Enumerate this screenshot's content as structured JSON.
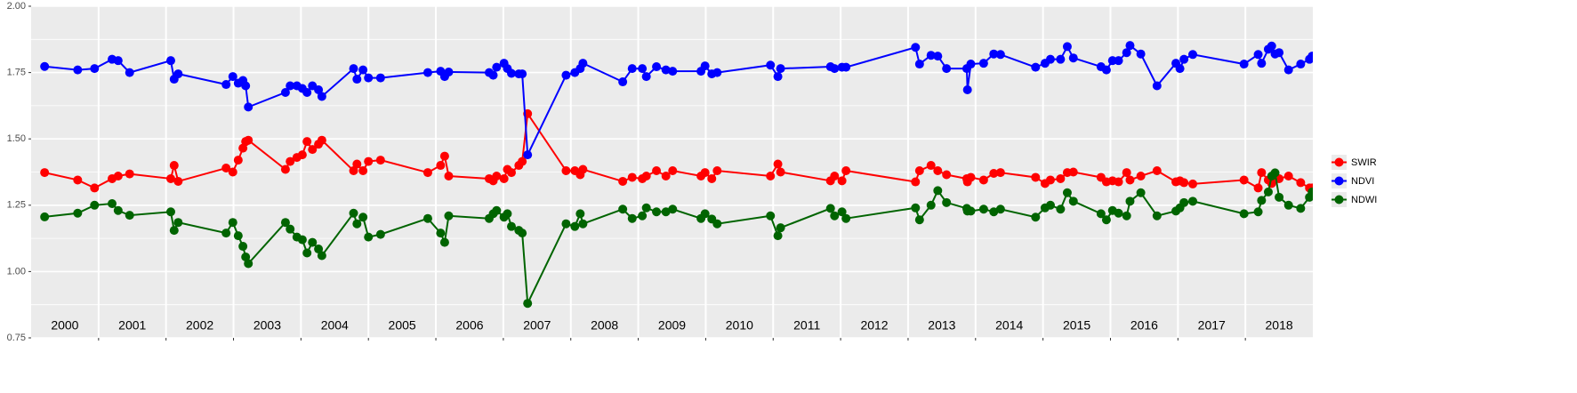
{
  "chart_data": {
    "type": "line",
    "x": [
      2000.2,
      2000.69,
      2000.94,
      2001.2,
      2001.29,
      2001.46,
      2002.07,
      2002.12,
      2002.18,
      2002.89,
      2002.99,
      2003.07,
      2003.14,
      2003.18,
      2003.22,
      2003.77,
      2003.84,
      2003.94,
      2004.02,
      2004.09,
      2004.17,
      2004.26,
      2004.31,
      2004.78,
      2004.83,
      2004.92,
      2005.0,
      2005.18,
      2005.88,
      2006.07,
      2006.13,
      2006.19,
      2006.79,
      2006.85,
      2006.9,
      2007.01,
      2007.06,
      2007.12,
      2007.23,
      2007.28,
      2007.36,
      2007.93,
      2008.06,
      2008.14,
      2008.18,
      2008.77,
      2008.91,
      2009.06,
      2009.12,
      2009.27,
      2009.41,
      2009.51,
      2009.93,
      2009.99,
      2010.09,
      2010.17,
      2010.96,
      2011.07,
      2011.11,
      2011.85,
      2011.91,
      2012.02,
      2012.08,
      2013.11,
      2013.17,
      2013.34,
      2013.44,
      2013.57,
      2013.87,
      2013.88,
      2013.93,
      2014.12,
      2014.27,
      2014.37,
      2014.89,
      2015.03,
      2015.11,
      2015.26,
      2015.36,
      2015.45,
      2015.86,
      2015.94,
      2016.03,
      2016.12,
      2016.24,
      2016.29,
      2016.45,
      2016.69,
      2016.97,
      2017.03,
      2017.09,
      2017.22,
      2017.98,
      2018.19,
      2018.24,
      2018.34,
      2018.39,
      2018.44,
      2018.5,
      2018.64,
      2018.82,
      2018.95,
      2018.99
    ],
    "series": [
      {
        "name": "SWIR",
        "color": "#ff0000",
        "values": [
          1.373,
          1.345,
          1.315,
          1.35,
          1.36,
          1.368,
          1.35,
          1.4,
          1.34,
          1.39,
          1.375,
          1.42,
          1.465,
          1.49,
          1.495,
          1.385,
          1.415,
          1.43,
          1.44,
          1.49,
          1.46,
          1.48,
          1.495,
          1.38,
          1.405,
          1.38,
          1.415,
          1.42,
          1.373,
          1.4,
          1.435,
          1.36,
          1.35,
          1.342,
          1.36,
          1.35,
          1.385,
          1.373,
          1.4,
          1.415,
          1.595,
          1.38,
          1.38,
          1.365,
          1.385,
          1.34,
          1.355,
          1.35,
          1.36,
          1.38,
          1.36,
          1.38,
          1.36,
          1.373,
          1.35,
          1.38,
          1.36,
          1.405,
          1.375,
          1.342,
          1.36,
          1.342,
          1.38,
          1.338,
          1.38,
          1.4,
          1.38,
          1.365,
          1.35,
          1.338,
          1.355,
          1.345,
          1.37,
          1.373,
          1.355,
          1.332,
          1.345,
          1.35,
          1.373,
          1.375,
          1.355,
          1.338,
          1.342,
          1.338,
          1.373,
          1.345,
          1.36,
          1.38,
          1.338,
          1.342,
          1.335,
          1.33,
          1.345,
          1.315,
          1.373,
          1.345,
          1.332,
          1.36,
          1.35,
          1.36,
          1.335,
          1.315,
          1.315
        ]
      },
      {
        "name": "NDVI",
        "color": "#0000ff",
        "values": [
          1.773,
          1.76,
          1.765,
          1.8,
          1.795,
          1.75,
          1.795,
          1.725,
          1.745,
          1.705,
          1.735,
          1.71,
          1.72,
          1.7,
          1.62,
          1.675,
          1.7,
          1.7,
          1.69,
          1.675,
          1.7,
          1.685,
          1.66,
          1.765,
          1.725,
          1.76,
          1.73,
          1.73,
          1.75,
          1.755,
          1.735,
          1.752,
          1.75,
          1.74,
          1.77,
          1.785,
          1.765,
          1.747,
          1.745,
          1.745,
          1.44,
          1.74,
          1.75,
          1.765,
          1.785,
          1.715,
          1.765,
          1.765,
          1.735,
          1.772,
          1.76,
          1.755,
          1.755,
          1.775,
          1.745,
          1.75,
          1.778,
          1.735,
          1.765,
          1.772,
          1.765,
          1.77,
          1.77,
          1.845,
          1.782,
          1.815,
          1.812,
          1.765,
          1.765,
          1.685,
          1.782,
          1.785,
          1.82,
          1.818,
          1.77,
          1.785,
          1.8,
          1.8,
          1.848,
          1.805,
          1.772,
          1.76,
          1.795,
          1.795,
          1.825,
          1.852,
          1.82,
          1.7,
          1.785,
          1.765,
          1.8,
          1.818,
          1.782,
          1.818,
          1.785,
          1.838,
          1.85,
          1.82,
          1.825,
          1.76,
          1.782,
          1.8,
          1.812
        ]
      },
      {
        "name": "NDWI",
        "color": "#006400",
        "values": [
          1.206,
          1.22,
          1.25,
          1.256,
          1.23,
          1.212,
          1.225,
          1.155,
          1.185,
          1.145,
          1.185,
          1.135,
          1.095,
          1.055,
          1.03,
          1.185,
          1.16,
          1.13,
          1.12,
          1.07,
          1.11,
          1.085,
          1.06,
          1.22,
          1.18,
          1.205,
          1.13,
          1.14,
          1.2,
          1.145,
          1.11,
          1.21,
          1.2,
          1.218,
          1.23,
          1.205,
          1.218,
          1.17,
          1.155,
          1.145,
          0.88,
          1.18,
          1.17,
          1.218,
          1.18,
          1.235,
          1.2,
          1.21,
          1.24,
          1.225,
          1.225,
          1.235,
          1.2,
          1.218,
          1.198,
          1.18,
          1.21,
          1.135,
          1.165,
          1.238,
          1.21,
          1.225,
          1.2,
          1.24,
          1.195,
          1.25,
          1.305,
          1.26,
          1.238,
          1.228,
          1.228,
          1.235,
          1.225,
          1.235,
          1.205,
          1.24,
          1.25,
          1.235,
          1.297,
          1.265,
          1.218,
          1.195,
          1.23,
          1.22,
          1.21,
          1.265,
          1.297,
          1.21,
          1.228,
          1.24,
          1.26,
          1.265,
          1.218,
          1.225,
          1.268,
          1.3,
          1.36,
          1.372,
          1.28,
          1.25,
          1.238,
          1.28,
          1.3
        ]
      }
    ],
    "xlim": [
      2000,
      2019
    ],
    "ylim": [
      0.75,
      2.0
    ],
    "yticks": [
      {
        "value": 0.75,
        "label": "0.75"
      },
      {
        "value": 1.0,
        "label": "1.00"
      },
      {
        "value": 1.25,
        "label": "1.25"
      },
      {
        "value": 1.5,
        "label": "1.50"
      },
      {
        "value": 1.75,
        "label": "1.75"
      },
      {
        "value": 2.0,
        "label": "2.00"
      }
    ],
    "xgrid": [
      2001,
      2002,
      2003,
      2004,
      2005,
      2006,
      2007,
      2008,
      2009,
      2010,
      2011,
      2012,
      2013,
      2014,
      2015,
      2016,
      2017,
      2018
    ],
    "year_labels": [
      {
        "value": 2000.5,
        "label": "2000"
      },
      {
        "value": 2001.5,
        "label": "2001"
      },
      {
        "value": 2002.5,
        "label": "2002"
      },
      {
        "value": 2003.5,
        "label": "2003"
      },
      {
        "value": 2004.5,
        "label": "2004"
      },
      {
        "value": 2005.5,
        "label": "2005"
      },
      {
        "value": 2006.5,
        "label": "2006"
      },
      {
        "value": 2007.5,
        "label": "2007"
      },
      {
        "value": 2008.5,
        "label": "2008"
      },
      {
        "value": 2009.5,
        "label": "2009"
      },
      {
        "value": 2010.5,
        "label": "2010"
      },
      {
        "value": 2011.5,
        "label": "2011"
      },
      {
        "value": 2012.5,
        "label": "2012"
      },
      {
        "value": 2013.5,
        "label": "2013"
      },
      {
        "value": 2014.5,
        "label": "2014"
      },
      {
        "value": 2015.5,
        "label": "2015"
      },
      {
        "value": 2016.5,
        "label": "2016"
      },
      {
        "value": 2017.5,
        "label": "2017"
      },
      {
        "value": 2018.5,
        "label": "2018"
      }
    ],
    "grid": true,
    "legend": "right"
  }
}
